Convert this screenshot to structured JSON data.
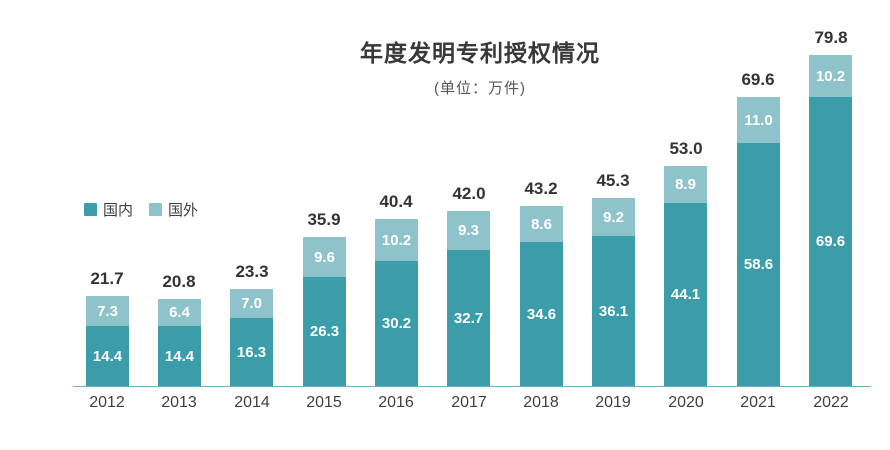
{
  "header": {
    "title": "年度发明专利授权情况",
    "subtitle": "(单位：万件)"
  },
  "colors": {
    "domestic": "#3c9daa",
    "foreign": "#8fc3cc",
    "axis_line": "#6cb3be",
    "total_label": "#333333",
    "inner_label": "#ffffff"
  },
  "chart_data": {
    "type": "bar",
    "stacked": true,
    "title": "年度发明专利授权情况",
    "unit_label": "(单位：万件)",
    "categories": [
      "2012",
      "2013",
      "2014",
      "2015",
      "2016",
      "2017",
      "2018",
      "2019",
      "2020",
      "2021",
      "2022"
    ],
    "series": [
      {
        "name": "国内",
        "color": "#3c9daa",
        "values": [
          14.4,
          14.4,
          16.3,
          26.3,
          30.2,
          32.7,
          34.6,
          36.1,
          44.1,
          58.6,
          69.6
        ]
      },
      {
        "name": "国外",
        "color": "#8fc3cc",
        "values": [
          7.3,
          6.4,
          7.0,
          9.6,
          10.2,
          9.3,
          8.6,
          9.2,
          8.9,
          11.0,
          10.2
        ]
      }
    ],
    "totals": [
      21.7,
      20.8,
      23.3,
      35.9,
      40.4,
      42.0,
      43.2,
      45.3,
      53.0,
      69.6,
      79.8
    ],
    "ylim": [
      0,
      79.8
    ],
    "grid": false,
    "legend_position": "left-middle",
    "value_labels": "inside-segments-and-total-on-top"
  }
}
